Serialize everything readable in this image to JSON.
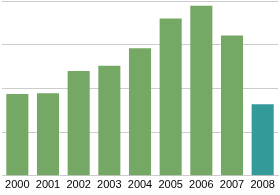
{
  "chart_data": {
    "type": "bar",
    "categories": [
      "2000",
      "2001",
      "2002",
      "2003",
      "2004",
      "2005",
      "2006",
      "2007",
      "2008"
    ],
    "values": [
      1.87,
      1.89,
      2.4,
      2.52,
      2.92,
      3.6,
      3.89,
      3.21,
      1.64
    ],
    "colors": [
      "#76a865",
      "#76a865",
      "#76a865",
      "#76a865",
      "#76a865",
      "#76a865",
      "#76a865",
      "#76a865",
      "#339999"
    ],
    "ylim": [
      0,
      4
    ],
    "yticks": [
      0,
      1,
      2,
      3,
      4
    ],
    "grid": true,
    "tick_labels": "x"
  }
}
